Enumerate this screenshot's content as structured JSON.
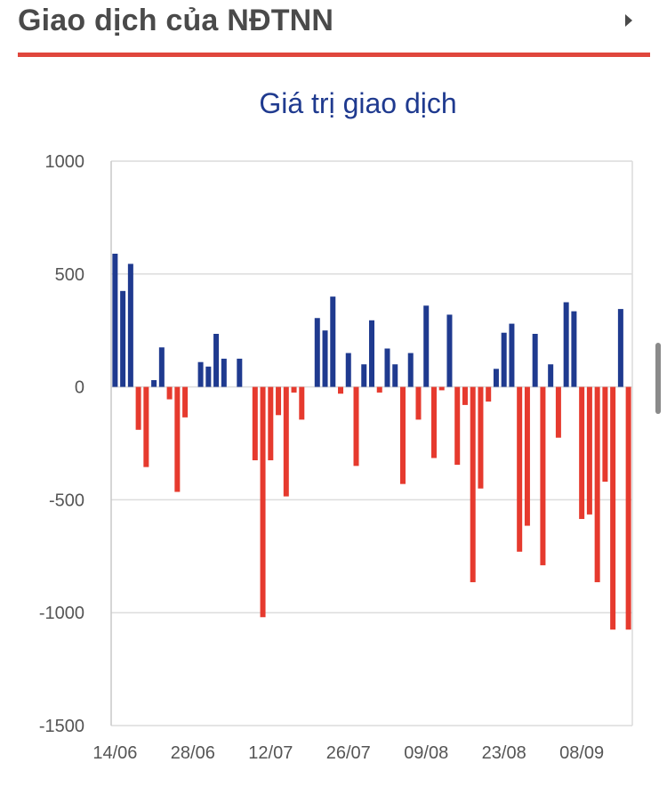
{
  "header": {
    "title": "Giao dịch của NĐTNN",
    "more_icon": "chevron-right-icon"
  },
  "colors": {
    "positive": "#1f3a8f",
    "negative": "#e63a2e",
    "accent": "#e0463c",
    "title": "#1f3a8f"
  },
  "chart_data": {
    "type": "bar",
    "title": "Giá trị giao dịch",
    "xlabel": "",
    "ylabel": "",
    "ylim": [
      -1500,
      1000
    ],
    "yticks": [
      "1000",
      "500",
      "0",
      "-500",
      "-1000",
      "-1500"
    ],
    "ytick_values": [
      1000,
      500,
      0,
      -500,
      -1000,
      -1500
    ],
    "xtick_labels": [
      "14/06",
      "28/06",
      "12/07",
      "26/07",
      "09/08",
      "23/08",
      "08/09"
    ],
    "xtick_positions": [
      0,
      10,
      20,
      30,
      40,
      50,
      60
    ],
    "grid": true,
    "values": [
      590,
      425,
      545,
      -190,
      -355,
      30,
      175,
      -55,
      -465,
      -135,
      0,
      110,
      90,
      235,
      125,
      0,
      125,
      0,
      -325,
      -1020,
      -325,
      -125,
      -485,
      -25,
      -145,
      0,
      305,
      250,
      400,
      -30,
      150,
      -350,
      100,
      295,
      -25,
      170,
      100,
      -430,
      150,
      -145,
      360,
      -315,
      -15,
      320,
      -345,
      -80,
      -865,
      -450,
      -65,
      80,
      240,
      280,
      -730,
      -615,
      235,
      -790,
      100,
      -225,
      375,
      335,
      -585,
      -565,
      -865,
      -420,
      -1075,
      345,
      -1075
    ]
  }
}
